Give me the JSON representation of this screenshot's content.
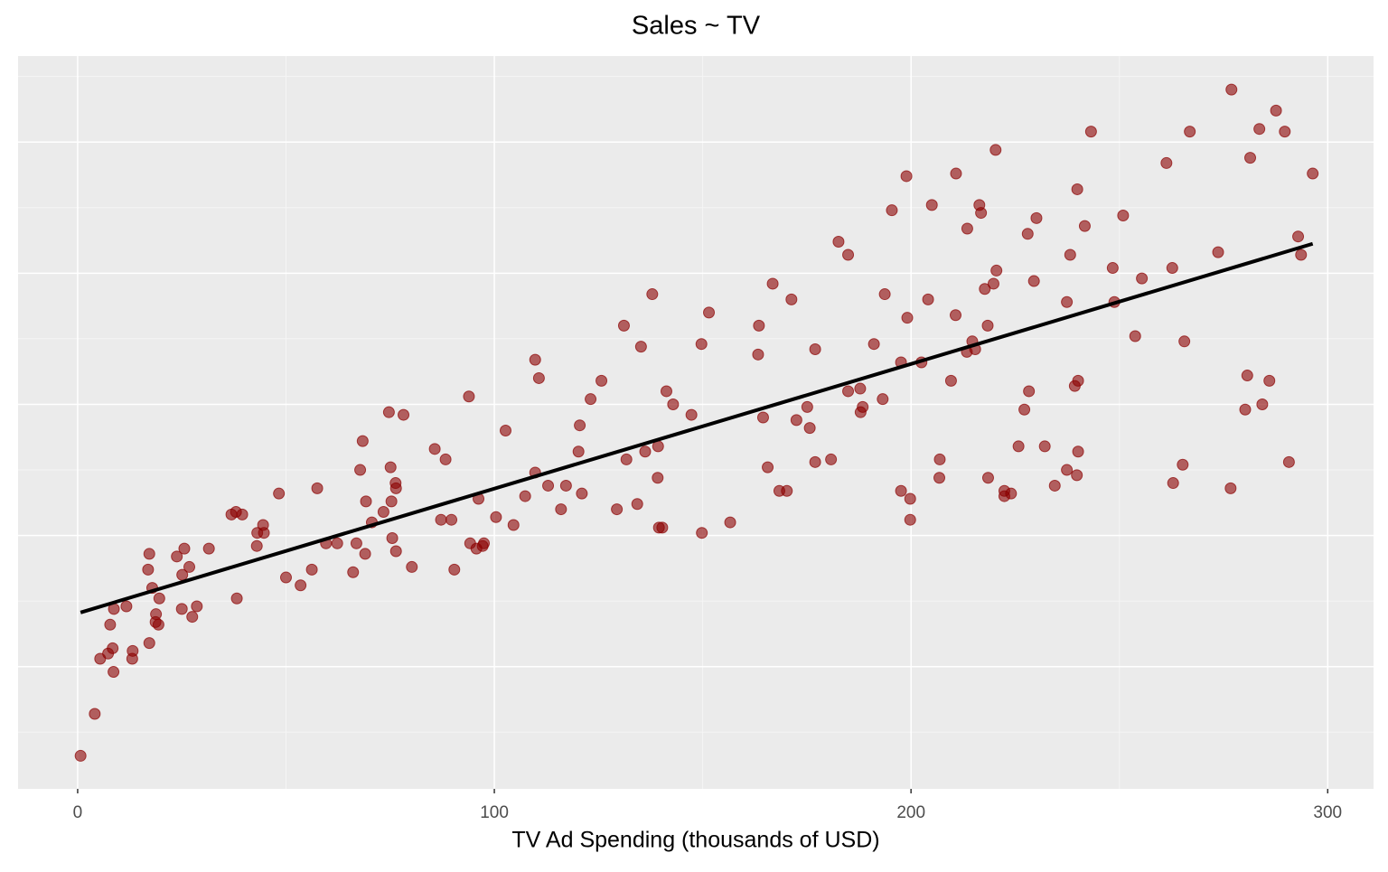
{
  "chart_data": {
    "type": "scatter",
    "title": "Sales ~ TV",
    "x_label": "TV Ad Spending (thousands of USD)",
    "x": [
      230.1,
      44.5,
      17.2,
      151.5,
      180.8,
      8.7,
      57.5,
      120.2,
      8.6,
      199.8,
      66.1,
      214.7,
      23.8,
      97.5,
      204.1,
      195.4,
      67.8,
      281.4,
      69.2,
      147.3,
      218.4,
      237.4,
      13.2,
      228.3,
      62.3,
      262.9,
      142.9,
      240.1,
      248.8,
      70.6,
      292.9,
      112.9,
      97.2,
      265.6,
      95.7,
      290.7,
      266.9,
      74.7,
      43.1,
      228,
      202.5,
      177,
      293.6,
      206.9,
      25.1,
      175.1,
      89.7,
      239.9,
      227.2,
      66.9,
      199.8,
      100.4,
      216.4,
      182.6,
      262.7,
      198.9,
      7.3,
      136.2,
      210.8,
      210.7,
      53.5,
      261.3,
      239.3,
      102.7,
      131.1,
      69,
      31.5,
      139.3,
      237.4,
      216.8,
      199.1,
      109.8,
      26.8,
      129.4,
      213.4,
      16.9,
      27.5,
      120.5,
      5.4,
      116,
      76.4,
      239.8,
      75.3,
      68.4,
      213.5,
      193.2,
      76.3,
      110.7,
      88.3,
      109.8,
      134.3,
      28.6,
      217.7,
      250.9,
      107.4,
      163.3,
      197.6,
      184.9,
      289.7,
      135.2,
      222.4,
      296.4,
      280.2,
      187.9,
      238.2,
      137.9,
      25,
      90.4,
      13.1,
      255.4,
      225.8,
      241.7,
      175.7,
      209.6,
      78.2,
      75.1,
      139.2,
      76.4,
      125.7,
      19.4,
      141.3,
      18.8,
      224,
      123.1,
      229.5,
      87.2,
      7.8,
      80.2,
      220.3,
      59.6,
      0.7,
      265.2,
      8.4,
      219.8,
      36.9,
      48.3,
      25.6,
      273.7,
      43,
      184.9,
      73.4,
      193.7,
      220.5,
      104.6,
      96.2,
      140.3,
      240.1,
      243.2,
      38,
      44.7,
      280.7,
      121,
      197.6,
      171.3,
      187.8,
      4.1,
      93.9,
      149.8,
      11.7,
      131.7,
      172.5,
      85.7,
      188.4,
      163.5,
      117.2,
      234.5,
      17.9,
      206.8,
      215.4,
      284.3,
      50,
      164.5,
      19.6,
      168.4,
      222.4,
      276.9,
      248.4,
      170.2,
      276.7,
      165.6,
      156.6,
      218.5,
      56.2,
      287.6,
      253.8,
      205,
      139.5,
      191.1,
      286,
      18.7,
      39.5,
      75.5,
      17.2,
      166.8,
      149.7,
      38.2,
      94.2,
      177,
      283.6,
      232.1
    ],
    "series": [
      {
        "color": "#8b0000",
        "values": [
          22.1,
          10.4,
          9.3,
          18.5,
          12.9,
          7.2,
          11.8,
          13.2,
          4.8,
          10.6,
          8.6,
          17.4,
          9.2,
          9.7,
          19,
          22.4,
          12.5,
          24.4,
          11.3,
          14.6,
          18,
          12.5,
          5.6,
          15.5,
          9.7,
          12,
          15,
          15.9,
          18.9,
          10.5,
          21.4,
          11.9,
          9.6,
          17.4,
          9.5,
          12.8,
          25.4,
          14.7,
          10.1,
          21.5,
          16.6,
          17.1,
          20.7,
          12.9,
          8.5,
          14.9,
          10.6,
          23.2,
          14.8,
          9.7,
          11.4,
          10.7,
          22.6,
          21.2,
          20.2,
          23.7,
          5.5,
          13.2,
          23.8,
          18.4,
          8.1,
          24.2,
          15.7,
          14,
          18,
          9.3,
          9.5,
          13.4,
          18.9,
          22.3,
          18.3,
          12.4,
          8.8,
          11,
          17,
          8.7,
          6.9,
          14.2,
          5.3,
          11,
          11.8,
          12.3,
          11.3,
          13.6,
          21.7,
          15.2,
          12,
          16,
          12.9,
          16.7,
          11.2,
          7.3,
          19.4,
          22.2,
          11.5,
          16.9,
          11.7,
          15.5,
          25.4,
          17.2,
          11.7,
          23.8,
          14.8,
          14.7,
          20.7,
          19.2,
          7.2,
          8.7,
          5.3,
          19.8,
          13.4,
          21.8,
          14.1,
          15.9,
          14.6,
          12.6,
          12.2,
          9.4,
          15.9,
          6.6,
          15.5,
          7,
          11.6,
          15.2,
          19.7,
          10.6,
          6.6,
          8.8,
          24.7,
          9.7,
          1.6,
          12.7,
          5.7,
          19.6,
          10.8,
          11.6,
          9.5,
          20.8,
          9.6,
          20.7,
          10.9,
          19.2,
          20.1,
          10.4,
          11.4,
          10.3,
          13.2,
          25.4,
          10.9,
          10.1,
          16.1,
          11.6,
          16.6,
          19,
          15.6,
          3.2,
          15.3,
          10.1,
          7.3,
          12.9,
          14.4,
          13.3,
          14.9,
          18,
          11.9,
          11.9,
          8,
          12.2,
          17.1,
          15,
          8.4,
          14.5,
          7.6,
          11.7,
          11.5,
          27,
          20.2,
          11.7,
          11.8,
          12.6,
          10.5,
          12.2,
          8.7,
          26.2,
          17.6,
          22.6,
          10.3,
          17.3,
          15.9,
          6.7,
          10.8,
          9.9,
          5.9,
          19.6,
          17.3,
          7.6,
          9.7,
          12.8,
          25.5,
          13.4
        ]
      }
    ],
    "xlim": [
      -14.3,
      311
    ],
    "ylim": [
      0.34,
      28.28
    ],
    "xticks": [
      0,
      100,
      200,
      300
    ],
    "yticks": [
      5,
      10,
      15,
      20,
      25
    ],
    "grid": true,
    "trend_line": true,
    "trend_color": "#000000"
  }
}
